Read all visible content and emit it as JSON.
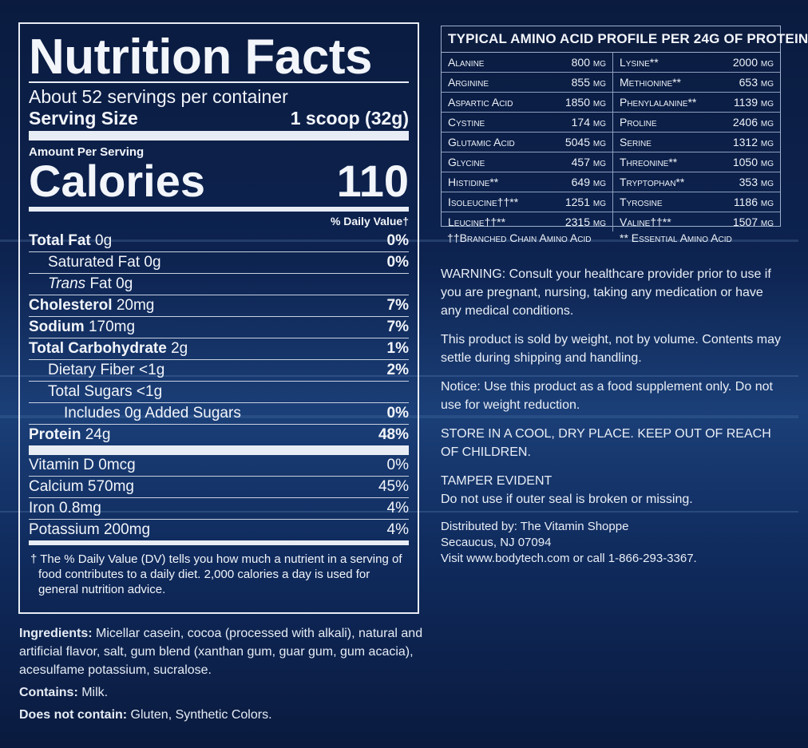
{
  "nutrition": {
    "title": "Nutrition Facts",
    "servings": "About 52 servings per container",
    "serving_size_label": "Serving Size",
    "serving_size_value": "1 scoop (32g)",
    "amount_per_serving": "Amount Per Serving",
    "calories_label": "Calories",
    "calories_value": "110",
    "dv_header": "% Daily Value†",
    "rows": [
      {
        "name": "Total Fat",
        "amount": "0g",
        "dv": "0%"
      },
      {
        "name": "Saturated Fat",
        "amount": "0g",
        "dv": "0%"
      },
      {
        "name": "Trans",
        "amount": "Fat 0g",
        "dv": ""
      },
      {
        "name": "Cholesterol",
        "amount": "20mg",
        "dv": "7%"
      },
      {
        "name": "Sodium",
        "amount": "170mg",
        "dv": "7%"
      },
      {
        "name": "Total Carbohydrate",
        "amount": "2g",
        "dv": "1%"
      },
      {
        "name": "Dietary Fiber",
        "amount": "<1g",
        "dv": "2%"
      },
      {
        "name": "Total Sugars",
        "amount": "<1g",
        "dv": ""
      },
      {
        "name": "Includes 0g Added Sugars",
        "amount": "",
        "dv": "0%"
      },
      {
        "name": "Protein",
        "amount": "24g",
        "dv": "48%"
      }
    ],
    "vitamins": [
      {
        "name": "Vitamin D 0mcg",
        "dv": "0%"
      },
      {
        "name": "Calcium 570mg",
        "dv": "45%"
      },
      {
        "name": "Iron 0.8mg",
        "dv": "4%"
      },
      {
        "name": "Potassium 200mg",
        "dv": "4%"
      }
    ],
    "footnote": "† The % Daily Value (DV) tells you how much a nutrient in a serving of food contributes to a daily diet. 2,000 calories a day is used for general nutrition advice."
  },
  "ingredients": {
    "ingredients_label": "Ingredients:",
    "ingredients_text": " Micellar casein, cocoa (processed with alkali), natural and artificial flavor, salt, gum blend (xanthan gum, guar gum, gum acacia), acesulfame potassium, sucralose.",
    "contains_label": "Contains:",
    "contains_text": " Milk.",
    "not_contain_label": "Does not contain:",
    "not_contain_text": " Gluten, Synthetic Colors."
  },
  "amino": {
    "title": "TYPICAL AMINO ACID PROFILE PER 24G OF PROTEIN",
    "rows": [
      {
        "l_name": "Alanine",
        "l_val": "800 mg",
        "r_name": "Lysine**",
        "r_val": "2000 mg"
      },
      {
        "l_name": "Arginine",
        "l_val": "855 mg",
        "r_name": "Methionine**",
        "r_val": "653 mg"
      },
      {
        "l_name": "Aspartic Acid",
        "l_val": "1850 mg",
        "r_name": "Phenylalanine**",
        "r_val": "1139 mg"
      },
      {
        "l_name": "Cystine",
        "l_val": "174 mg",
        "r_name": "Proline",
        "r_val": "2406 mg"
      },
      {
        "l_name": "Glutamic Acid",
        "l_val": "5045 mg",
        "r_name": "Serine",
        "r_val": "1312 mg"
      },
      {
        "l_name": "Glycine",
        "l_val": "457 mg",
        "r_name": "Threonine**",
        "r_val": "1050 mg"
      },
      {
        "l_name": "Histidine**",
        "l_val": "649 mg",
        "r_name": "Tryptophan**",
        "r_val": "353 mg"
      },
      {
        "l_name": "Isoleucine††**",
        "l_val": "1251 mg",
        "r_name": "Tyrosine",
        "r_val": "1186 mg"
      },
      {
        "l_name": "Leucine††**",
        "l_val": "2315 mg",
        "r_name": "Valine††**",
        "r_val": "1507 mg"
      }
    ],
    "legend_bcaa": "††Branched Chain Amino Acid",
    "legend_eaa": "** Essential Amino Acid"
  },
  "notes": {
    "warning": "WARNING: Consult your healthcare provider prior to use if you are pregnant, nursing, taking any medication or have any medical conditions.",
    "weight": "This product is sold by weight, not by volume. Contents may settle during shipping and handling.",
    "notice": "Notice: Use this product as a food supplement only. Do not use for weight reduction.",
    "store": "STORE IN A COOL, DRY PLACE. KEEP OUT OF REACH OF CHILDREN.",
    "tamper_title": "TAMPER EVIDENT",
    "tamper_text": "Do not use if outer seal is broken or missing.",
    "dist1": "Distributed by: The Vitamin Shoppe",
    "dist2": "Secaucus, NJ 07094",
    "dist3": "Visit www.bodytech.com or call 1-866-293-3367."
  }
}
